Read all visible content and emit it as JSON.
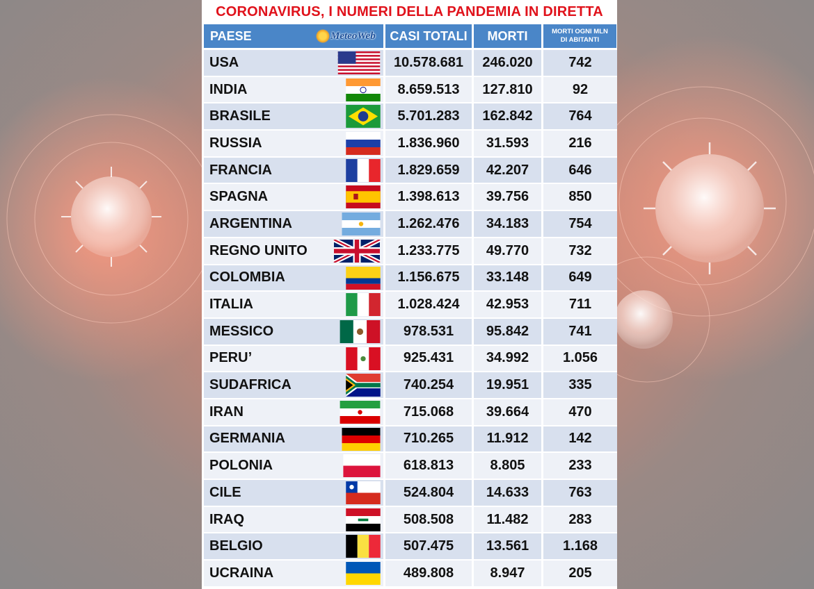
{
  "title": "CORONAVIRUS, I NUMERI DELLA PANDEMIA IN DIRETTA",
  "logo_text": "MeteoWeb",
  "headers": {
    "country": "PAESE",
    "cases": "CASI TOTALI",
    "deaths": "MORTI",
    "per_mln_line1": "MORTI OGNI MLN",
    "per_mln_line2": "DI ABITANTI"
  },
  "colors": {
    "title_red": "#e0121b",
    "header_blue": "#4a86c8",
    "row_dark": "#d8e0ee",
    "row_light": "#eef1f7"
  },
  "rows": [
    {
      "country": "USA",
      "flag": "usa-flag-icon",
      "cases": "10.578.681",
      "deaths": "246.020",
      "per_mln": "742"
    },
    {
      "country": "INDIA",
      "flag": "india-flag-icon",
      "cases": "8.659.513",
      "deaths": "127.810",
      "per_mln": "92"
    },
    {
      "country": "BRASILE",
      "flag": "brazil-flag-icon",
      "cases": "5.701.283",
      "deaths": "162.842",
      "per_mln": "764"
    },
    {
      "country": "RUSSIA",
      "flag": "russia-flag-icon",
      "cases": "1.836.960",
      "deaths": "31.593",
      "per_mln": "216"
    },
    {
      "country": "FRANCIA",
      "flag": "france-flag-icon",
      "cases": "1.829.659",
      "deaths": "42.207",
      "per_mln": "646"
    },
    {
      "country": "SPAGNA",
      "flag": "spain-flag-icon",
      "cases": "1.398.613",
      "deaths": "39.756",
      "per_mln": "850"
    },
    {
      "country": "ARGENTINA",
      "flag": "argentina-flag-icon",
      "cases": "1.262.476",
      "deaths": "34.183",
      "per_mln": "754"
    },
    {
      "country": "REGNO UNITO",
      "flag": "uk-flag-icon",
      "cases": "1.233.775",
      "deaths": "49.770",
      "per_mln": "732"
    },
    {
      "country": "COLOMBIA",
      "flag": "colombia-flag-icon",
      "cases": "1.156.675",
      "deaths": "33.148",
      "per_mln": "649"
    },
    {
      "country": "ITALIA",
      "flag": "italy-flag-icon",
      "cases": "1.028.424",
      "deaths": "42.953",
      "per_mln": "711"
    },
    {
      "country": "MESSICO",
      "flag": "mexico-flag-icon",
      "cases": "978.531",
      "deaths": "95.842",
      "per_mln": "741"
    },
    {
      "country": "PERU’",
      "flag": "peru-flag-icon",
      "cases": "925.431",
      "deaths": "34.992",
      "per_mln": "1.056"
    },
    {
      "country": "SUDAFRICA",
      "flag": "south-africa-flag-icon",
      "cases": "740.254",
      "deaths": "19.951",
      "per_mln": "335"
    },
    {
      "country": "IRAN",
      "flag": "iran-flag-icon",
      "cases": "715.068",
      "deaths": "39.664",
      "per_mln": "470"
    },
    {
      "country": "GERMANIA",
      "flag": "germany-flag-icon",
      "cases": "710.265",
      "deaths": "11.912",
      "per_mln": "142"
    },
    {
      "country": "POLONIA",
      "flag": "poland-flag-icon",
      "cases": "618.813",
      "deaths": "8.805",
      "per_mln": "233"
    },
    {
      "country": "CILE",
      "flag": "chile-flag-icon",
      "cases": "524.804",
      "deaths": "14.633",
      "per_mln": "763"
    },
    {
      "country": "IRAQ",
      "flag": "iraq-flag-icon",
      "cases": "508.508",
      "deaths": "11.482",
      "per_mln": "283"
    },
    {
      "country": "BELGIO",
      "flag": "belgium-flag-icon",
      "cases": "507.475",
      "deaths": "13.561",
      "per_mln": "1.168"
    },
    {
      "country": "UCRAINA",
      "flag": "ukraine-flag-icon",
      "cases": "489.808",
      "deaths": "8.947",
      "per_mln": "205"
    }
  ]
}
